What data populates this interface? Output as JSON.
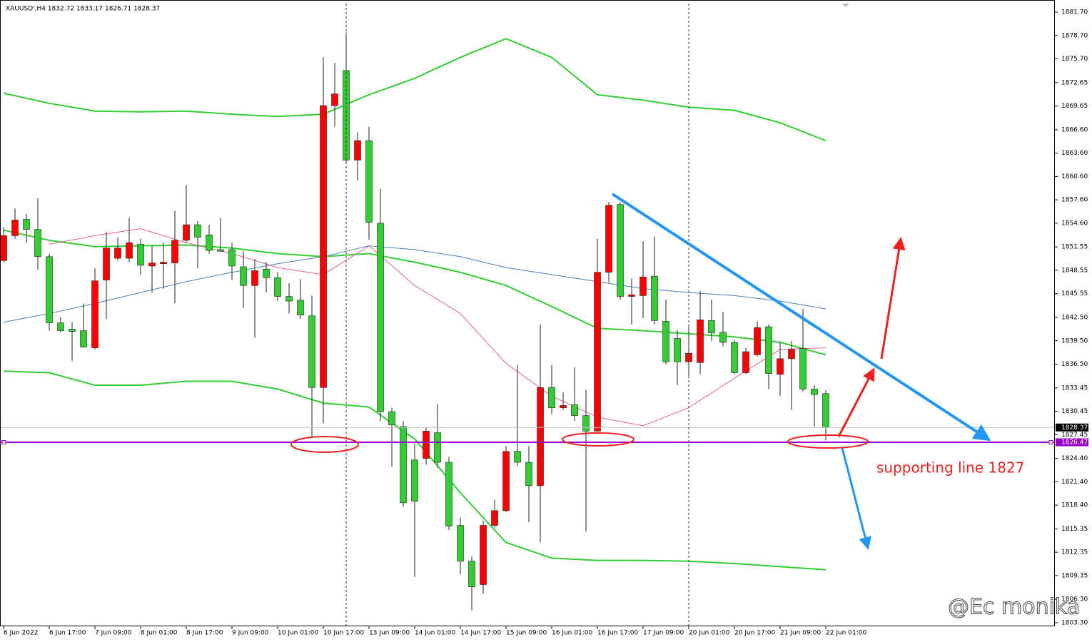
{
  "chart_data": {
    "type": "candlestick",
    "title": "XAUUSD',H4  1832.72 1833.17 1826.71 1828.37",
    "categories": [
      "6 Jun 2022",
      null,
      null,
      null,
      "6 Jun 17:00",
      null,
      null,
      null,
      "7 Jun 09:00",
      null,
      null,
      null,
      "8 Jun 01:00",
      null,
      null,
      null,
      "8 Jun 17:00",
      null,
      null,
      null,
      "9 Jun 09:00",
      null,
      null,
      null,
      "10 Jun 01:00",
      null,
      null,
      null,
      "10 Jun 17:00",
      null,
      null,
      null,
      "13 Jun 09:00",
      null,
      null,
      null,
      "14 Jun 01:00",
      null,
      null,
      null,
      "14 Jun 17:00",
      null,
      null,
      null,
      "15 Jun 09:00",
      null,
      null,
      null,
      "16 Jun 01:00",
      null,
      null,
      null,
      "16 Jun 17:00",
      null,
      null,
      null,
      "17 Jun 09:00",
      null,
      null,
      null,
      "20 Jun 01:00",
      null,
      null,
      null,
      "20 Jun 17:00",
      null,
      null,
      null,
      "21 Jun 09:00",
      null,
      null,
      null,
      "22 Jun 01:00"
    ],
    "open": [
      1849.8,
      1853.0,
      1855.1,
      1853.8,
      1850.3,
      1841.8,
      1841.0,
      1840.8,
      1838.6,
      1847.3,
      1850.1,
      1850.1,
      1851.9,
      1849.1,
      1849.4,
      1849.5,
      1852.4,
      1854.4,
      1853.1,
      1851.2,
      1851.2,
      1849.0,
      1846.6,
      1848.7,
      1847.6,
      1845.2,
      1844.7,
      1842.7,
      1833.5,
      1869.7,
      1874.2,
      1862.7,
      1865.2,
      1854.6,
      1830.4,
      1828.5,
      1824.2,
      1824.4,
      1827.7,
      1823.9,
      1815.8,
      1811.2,
      1808.2,
      1815.8,
      1817.7,
      1825.3,
      1823.9,
      1820.9,
      1833.5,
      1830.9,
      1831.3,
      1829.9,
      1827.9,
      1848.3,
      1857.0,
      1845.2,
      1845.3,
      1847.8,
      1842.0,
      1839.8,
      1836.8,
      1836.7,
      1842.1,
      1840.6,
      1839.3,
      1835.4,
      1837.7,
      1841.3,
      1835.2,
      1837.2,
      1838.5,
      1833.3,
      1832.72
    ],
    "high": [
      1854.1,
      1856.5,
      1855.8,
      1857.8,
      1850.7,
      1842.5,
      1841.9,
      1844.3,
      1848.8,
      1853.5,
      1852.8,
      1855.3,
      1852.6,
      1851.7,
      1852.1,
      1856.2,
      1859.5,
      1854.9,
      1854.4,
      1855.3,
      1852.1,
      1851.0,
      1850.0,
      1849.6,
      1848.3,
      1846.9,
      1847.4,
      1845.3,
      1875.9,
      1875.2,
      1879.1,
      1866.3,
      1867.0,
      1859.0,
      1830.9,
      1829.2,
      1826.3,
      1828.3,
      1831.4,
      1824.6,
      1816.8,
      1811.8,
      1816.4,
      1819.1,
      1826.0,
      1836.4,
      1826.0,
      1841.6,
      1836.4,
      1832.9,
      1836.1,
      1833.2,
      1852.6,
      1857.3,
      1857.3,
      1847.5,
      1852.3,
      1852.9,
      1844.8,
      1840.9,
      1841.6,
      1845.9,
      1844.8,
      1843.2,
      1839.6,
      1838.6,
      1842.0,
      1841.6,
      1839.3,
      1839.5,
      1843.6,
      1833.8,
      1833.17
    ],
    "low": [
      1849.6,
      1852.6,
      1852.1,
      1848.6,
      1840.8,
      1840.6,
      1836.9,
      1838.6,
      1838.4,
      1842.3,
      1849.8,
      1849.6,
      1848.0,
      1845.7,
      1846.2,
      1844.3,
      1852.1,
      1848.8,
      1850.7,
      1850.9,
      1847.3,
      1843.7,
      1839.9,
      1845.7,
      1844.6,
      1843.0,
      1842.3,
      1827.2,
      1828.9,
      1867.0,
      1862.2,
      1860.1,
      1852.5,
      1829.2,
      1823.3,
      1818.2,
      1809.2,
      1823.6,
      1823.2,
      1815.2,
      1809.5,
      1804.9,
      1807.0,
      1815.5,
      1817.5,
      1823.4,
      1816.2,
      1813.6,
      1830.1,
      1830.6,
      1829.2,
      1815.0,
      1827.8,
      1847.0,
      1844.8,
      1841.6,
      1842.4,
      1841.6,
      1836.5,
      1833.8,
      1834.7,
      1835.2,
      1839.5,
      1838.8,
      1835.2,
      1835.2,
      1837.5,
      1833.3,
      1832.4,
      1830.6,
      1833.0,
      1828.5,
      1826.71
    ],
    "close": [
      1853.0,
      1855.0,
      1853.8,
      1850.3,
      1841.8,
      1840.8,
      1840.7,
      1838.7,
      1847.2,
      1851.4,
      1851.4,
      1852.1,
      1849.2,
      1849.5,
      1849.6,
      1852.4,
      1854.4,
      1852.8,
      1851.1,
      1851.0,
      1849.1,
      1846.6,
      1848.5,
      1847.6,
      1845.2,
      1844.6,
      1842.8,
      1833.5,
      1869.7,
      1871.2,
      1862.7,
      1865.2,
      1854.7,
      1830.4,
      1828.7,
      1818.7,
      1818.9,
      1827.9,
      1823.9,
      1815.7,
      1811.2,
      1807.9,
      1815.8,
      1817.7,
      1825.3,
      1823.9,
      1820.9,
      1833.5,
      1830.9,
      1831.2,
      1829.9,
      1827.9,
      1848.3,
      1856.9,
      1845.2,
      1845.4,
      1847.7,
      1842.1,
      1836.8,
      1836.8,
      1837.9,
      1842.2,
      1840.5,
      1839.3,
      1835.4,
      1838.1,
      1841.2,
      1835.3,
      1837.2,
      1838.4,
      1833.3,
      1832.6,
      1828.37
    ],
    "up_color": "#ff0000",
    "down_color": "#32cd32",
    "overlays": [
      {
        "color": "#32cd32",
        "values": [
          1871.3,
          1870.0,
          1869.0,
          1868.9,
          1869.0,
          1868.6,
          1868.3,
          1868.6,
          1871.1,
          1873.2,
          1875.9,
          1878.3,
          1875.9,
          1871.1,
          1870.4,
          1869.5,
          1869.1,
          1867.5,
          1865.2
        ]
      },
      {
        "color": "#32cd32",
        "values": [
          1853.7,
          1852.4,
          1851.6,
          1851.7,
          1851.8,
          1851.4,
          1850.7,
          1850.3,
          1850.7,
          1849.6,
          1848.3,
          1846.6,
          1843.9,
          1841.1,
          1840.8,
          1840.4,
          1840.0,
          1839.3,
          1837.7
        ]
      },
      {
        "color": "#32cd32",
        "values": [
          1835.6,
          1835.4,
          1833.8,
          1833.8,
          1834.3,
          1834.3,
          1833.3,
          1831.5,
          1831.0,
          1826.9,
          1820.0,
          1813.6,
          1811.6,
          1811.3,
          1811.3,
          1811.2,
          1810.9,
          1810.5,
          1810.1
        ]
      },
      {
        "color": "#e8609a",
        "values": [
          null,
          1851.9,
          1853.0,
          1853.9,
          1852.1,
          1850.7,
          1848.9,
          1848.0,
          1851.7,
          1846.6,
          1843.0,
          1836.6,
          1832.4,
          1829.7,
          1828.6,
          1830.9,
          1834.7,
          1838.4,
          1838.6
        ]
      },
      {
        "color": "#4a7fb5",
        "values": [
          1841.9,
          1843.0,
          1844.3,
          1845.7,
          1847.1,
          1848.3,
          1849.4,
          1850.3,
          1851.7,
          1851.2,
          1850.3,
          1848.9,
          1848.0,
          1847.1,
          1846.2,
          1845.7,
          1845.3,
          1844.6,
          1843.6
        ]
      }
    ],
    "hline": {
      "value": 1826.47,
      "color": "#9900cc"
    },
    "ylim": [
      1802.84,
      1883.26
    ],
    "yticks": [
      {
        "value": 1881.7,
        "label": "1881.70"
      },
      {
        "value": 1878.7,
        "label": "1878.70"
      },
      {
        "value": 1875.7,
        "label": "1875.70"
      },
      1872.65,
      1869.65,
      {
        "value": 1866.6,
        "label": "1866.60"
      },
      {
        "value": 1863.6,
        "label": "1863.60"
      },
      {
        "value": 1860.6,
        "label": "1860.60"
      },
      {
        "value": 1857.6,
        "label": "1857.60"
      },
      {
        "value": 1854.6,
        "label": "1854.60"
      },
      1851.55,
      1848.55,
      1845.55,
      {
        "value": 1842.5,
        "label": "1842.50"
      },
      {
        "value": 1839.5,
        "label": "1839.50"
      },
      {
        "value": 1836.5,
        "label": "1836.50"
      },
      1833.45,
      1830.45,
      1827.45,
      {
        "value": 1824.4,
        "label": "1824.40"
      },
      {
        "value": 1821.4,
        "label": "1821.40"
      },
      {
        "value": 1818.4,
        "label": "1818.40"
      },
      1815.35,
      1812.35,
      1809.35,
      {
        "value": 1806.3,
        "label": "1806.30"
      },
      {
        "value": 1803.3,
        "label": "1803.30"
      }
    ],
    "annotation": "supporting line 1827",
    "watermark": "@Ec monika"
  }
}
